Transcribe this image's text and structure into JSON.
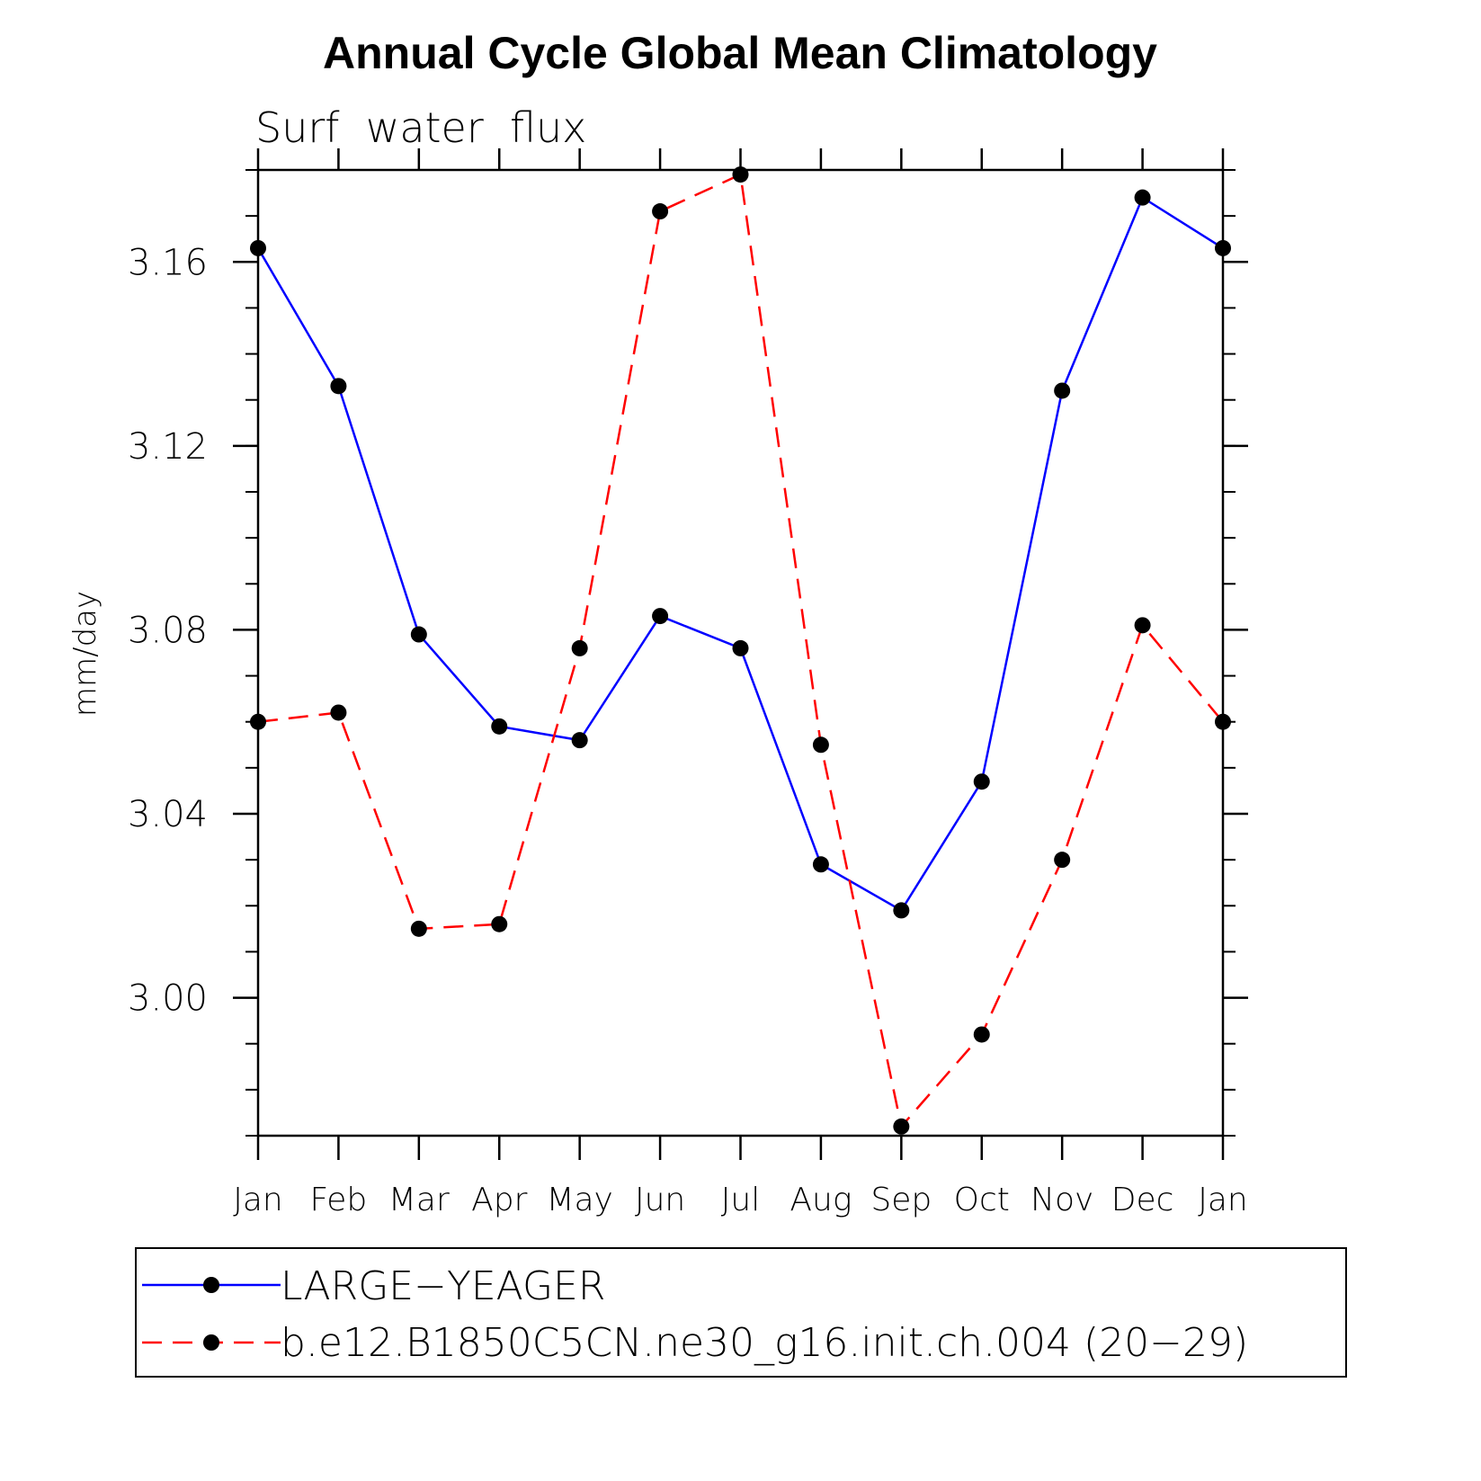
{
  "chart_data": {
    "type": "line",
    "title": "Annual Cycle Global Mean Climatology",
    "subtitle": "Surf  water  flux",
    "xlabel": "",
    "ylabel": "mm/day",
    "categories": [
      "Jan",
      "Feb",
      "Mar",
      "Apr",
      "May",
      "Jun",
      "Jul",
      "Aug",
      "Sep",
      "Oct",
      "Nov",
      "Dec",
      "Jan"
    ],
    "ylim": [
      2.97,
      3.18
    ],
    "yticks": [
      "3.00",
      "3.04",
      "3.08",
      "3.12",
      "3.16"
    ],
    "ytick_values": [
      3.0,
      3.04,
      3.08,
      3.12,
      3.16
    ],
    "minor_tick_step": 0.01,
    "grid": false,
    "legend_position": "bottom",
    "series": [
      {
        "name": "LARGE−YEAGER",
        "color": "#0000ff",
        "dash": "solid",
        "marker": "filled-circle",
        "values": [
          3.163,
          3.133,
          3.079,
          3.059,
          3.056,
          3.083,
          3.076,
          3.029,
          3.019,
          3.047,
          3.132,
          3.174,
          3.163
        ]
      },
      {
        "name": "b.e12.B1850C5CN.ne30_g16.init.ch.004 (20−29)",
        "color": "#ff0000",
        "dash": "dashed",
        "marker": "filled-circle",
        "values": [
          3.06,
          3.062,
          3.015,
          3.016,
          3.076,
          3.171,
          3.179,
          3.055,
          2.972,
          2.992,
          3.03,
          3.081,
          3.06
        ]
      }
    ]
  }
}
